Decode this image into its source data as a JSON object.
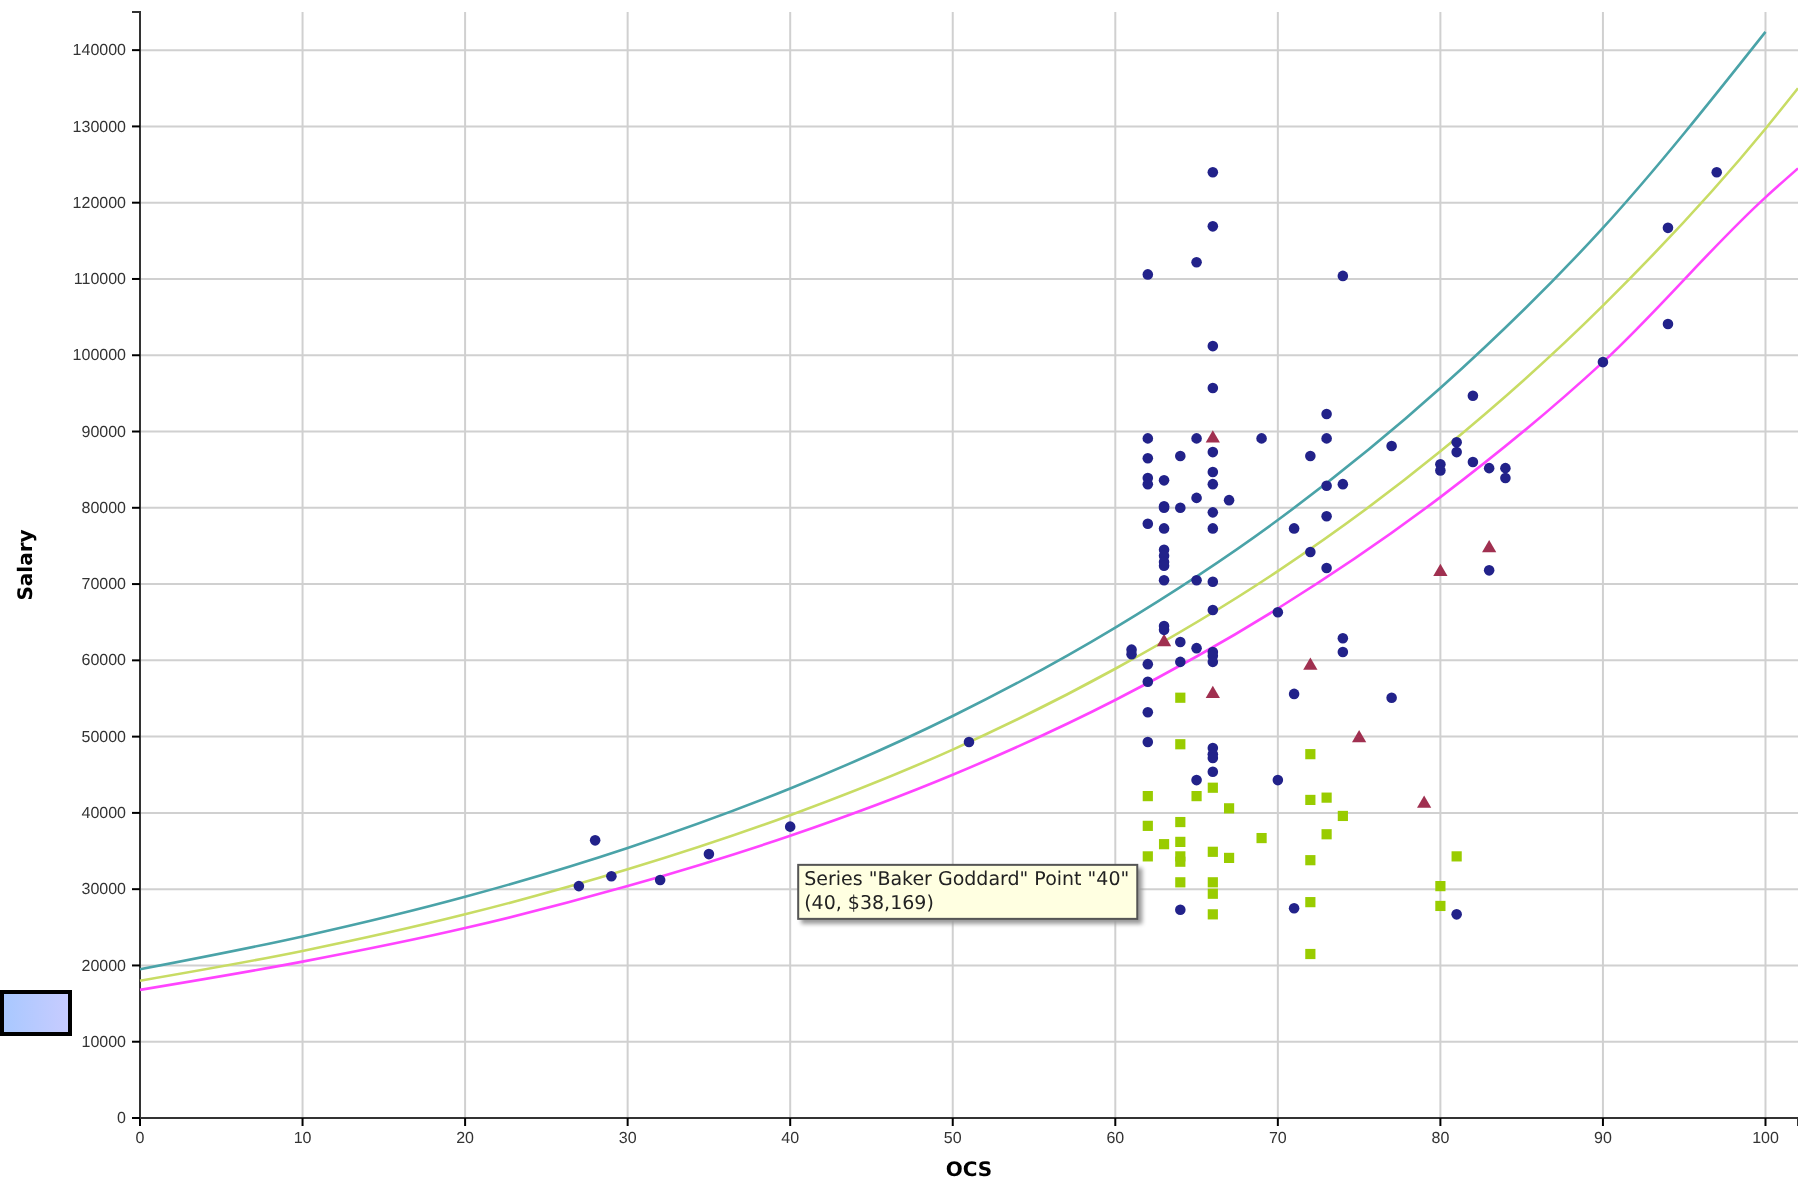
{
  "chart_data": {
    "type": "scatter",
    "xlabel": "OCS",
    "ylabel": "Salary",
    "xlim": [
      0,
      102
    ],
    "ylim": [
      0,
      145000
    ],
    "xticks": [
      0,
      10,
      20,
      30,
      40,
      50,
      60,
      70,
      80,
      90,
      100
    ],
    "yticks": [
      0,
      10000,
      20000,
      30000,
      40000,
      50000,
      60000,
      70000,
      80000,
      90000,
      100000,
      110000,
      120000,
      130000,
      140000
    ],
    "grid": true,
    "series": [
      {
        "type": "line",
        "marker": "none",
        "color": "#4aa3a8",
        "x": [
          0,
          10,
          20,
          30,
          40,
          50,
          60,
          70,
          80,
          90,
          100
        ],
        "values": [
          19500,
          23800,
          29000,
          35400,
          43200,
          52700,
          64300,
          78400,
          95700,
          116700,
          142400
        ]
      },
      {
        "type": "line",
        "marker": "none",
        "color": "#c8dc64",
        "x": [
          0,
          10,
          20,
          30,
          40,
          50,
          60,
          70,
          80,
          90,
          100,
          102
        ],
        "values": [
          18000,
          21900,
          26700,
          32600,
          39700,
          48300,
          58900,
          71700,
          87400,
          106500,
          129700,
          135000
        ]
      },
      {
        "type": "line",
        "marker": "none",
        "color": "#ff44ff",
        "x": [
          0,
          10,
          20,
          30,
          40,
          50,
          60,
          70,
          80,
          90,
          100,
          102
        ],
        "values": [
          16800,
          20500,
          24900,
          30400,
          37000,
          45000,
          54800,
          66800,
          81400,
          99100,
          120700,
          124500
        ]
      },
      {
        "marker": "square",
        "color": "#99cc00",
        "x": [
          62,
          62,
          62,
          63,
          64,
          64,
          64,
          64,
          64,
          64,
          64,
          65,
          66,
          66,
          66,
          66,
          66,
          67,
          67,
          69,
          72,
          72,
          72,
          72,
          72,
          73,
          73,
          74,
          80,
          80,
          81
        ],
        "values": [
          42200,
          38300,
          34300,
          35900,
          55100,
          49000,
          38800,
          36200,
          34300,
          33600,
          30900,
          42200,
          43300,
          34900,
          30900,
          29400,
          26700,
          40600,
          34100,
          36700,
          47700,
          41700,
          33800,
          28300,
          21500,
          42000,
          37200,
          39600,
          30400,
          27800,
          34300
        ]
      },
      {
        "marker": "triangle",
        "color": "#a03050",
        "x": [
          66,
          80,
          83,
          63,
          66,
          72,
          75,
          79
        ],
        "values": [
          89100,
          71600,
          74700,
          62400,
          55600,
          59300,
          49800,
          41200
        ]
      },
      {
        "marker": "circle",
        "color": "#22228a",
        "x": [
          28,
          27,
          29,
          32,
          35,
          40,
          51,
          62,
          62,
          62,
          62,
          62,
          62,
          62,
          62,
          62,
          62,
          61,
          61,
          63,
          63,
          63,
          63,
          63,
          63,
          63,
          63,
          63,
          63,
          63,
          64,
          64,
          64,
          64,
          64,
          65,
          65,
          65,
          65,
          65,
          65,
          66,
          66,
          66,
          66,
          66,
          66,
          66,
          66,
          66,
          66,
          66,
          66,
          66,
          66,
          66,
          66,
          66,
          66,
          67,
          69,
          70,
          70,
          71,
          71,
          71,
          72,
          72,
          73,
          73,
          73,
          73,
          73,
          74,
          74,
          74,
          74,
          77,
          77,
          80,
          80,
          81,
          81,
          81,
          82,
          82,
          83,
          83,
          84,
          84,
          90,
          94,
          94,
          97
        ],
        "values": [
          36400,
          30400,
          31700,
          31200,
          34600,
          38200,
          49300,
          110600,
          89100,
          86500,
          83900,
          83100,
          77900,
          59500,
          57200,
          53200,
          49300,
          61400,
          60800,
          83600,
          80200,
          80000,
          77300,
          74500,
          73700,
          72900,
          72400,
          70500,
          64500,
          64000,
          86800,
          80000,
          62400,
          59800,
          27300,
          112200,
          89100,
          81300,
          70500,
          61600,
          44300,
          124000,
          116900,
          101200,
          95700,
          87300,
          84700,
          83100,
          79400,
          77300,
          70300,
          66600,
          61100,
          60600,
          59800,
          48500,
          47700,
          47200,
          45400,
          81000,
          89100,
          66300,
          44300,
          77300,
          55600,
          27500,
          86800,
          74200,
          92300,
          89100,
          82900,
          78900,
          72100,
          110400,
          83100,
          62900,
          61100,
          55100,
          88100,
          85700,
          84900,
          88600,
          87300,
          26700,
          94700,
          86000,
          85200,
          71800,
          85200,
          83900,
          99100,
          116700,
          104100,
          124000
        ]
      }
    ],
    "annotations": [
      {
        "text": "Series \"Baker Goddard\" Point \"40\"\n(40, $38,169)",
        "x": 40,
        "y": 38169
      }
    ]
  }
}
